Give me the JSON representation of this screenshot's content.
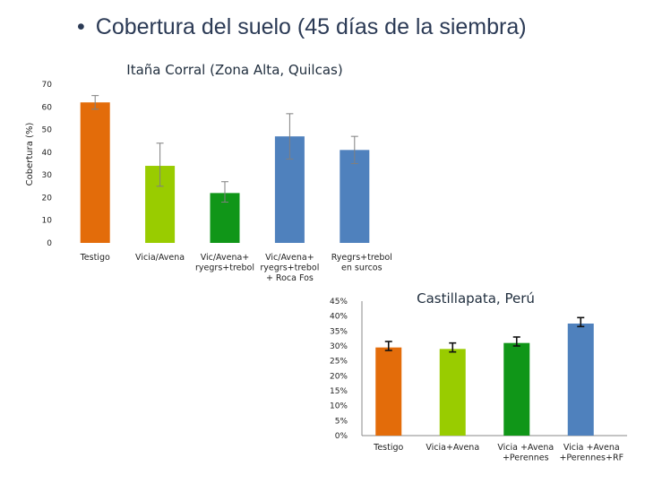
{
  "slide": {
    "bullet": "•",
    "title": "Cobertura del suelo (45 días de la siembra)"
  },
  "chart_data": [
    {
      "type": "bar",
      "title": "Itaña Corral  (Zona Alta, Quilcas)",
      "xlabel": "",
      "ylabel": "Cobertura (%)",
      "ylim": [
        0,
        70
      ],
      "yticks": [
        "0",
        "10",
        "20",
        "30",
        "40",
        "50",
        "60",
        "70"
      ],
      "grid": false,
      "categories": [
        [
          "Testigo"
        ],
        [
          "Vicia/Avena"
        ],
        [
          "Vic/Avena+",
          "ryegrs+trebol"
        ],
        [
          "Vic/Avena+",
          "ryegrs+trebol",
          "+ Roca Fos"
        ],
        [
          "Ryegrs+trebol",
          "en surcos"
        ]
      ],
      "values": [
        62,
        34,
        22,
        47,
        41
      ],
      "error_low": [
        59,
        25,
        18,
        37,
        35
      ],
      "error_high": [
        65,
        44,
        27,
        57,
        47
      ],
      "colors": [
        "#e36c0a",
        "#99cc00",
        "#109618",
        "#4f81bd",
        "#4f81bd"
      ]
    },
    {
      "type": "bar",
      "title": "Castillapata, Perú",
      "xlabel": "",
      "ylabel": "",
      "ylim": [
        0,
        45
      ],
      "yticks": [
        "0%",
        "5%",
        "10%",
        "15%",
        "20%",
        "25%",
        "30%",
        "35%",
        "40%",
        "45%"
      ],
      "grid": false,
      "categories": [
        [
          "Testigo"
        ],
        [
          "Vicia+Avena"
        ],
        [
          "Vicia +Avena",
          "+Perennes"
        ],
        [
          "Vicia +Avena",
          "+Perennes+RF"
        ]
      ],
      "values": [
        29.5,
        29,
        31,
        37.5
      ],
      "error_low": [
        28.5,
        28,
        30,
        36.5
      ],
      "error_high": [
        31.5,
        31,
        33,
        39.5
      ],
      "colors": [
        "#e36c0a",
        "#99cc00",
        "#109618",
        "#4f81bd"
      ]
    }
  ]
}
